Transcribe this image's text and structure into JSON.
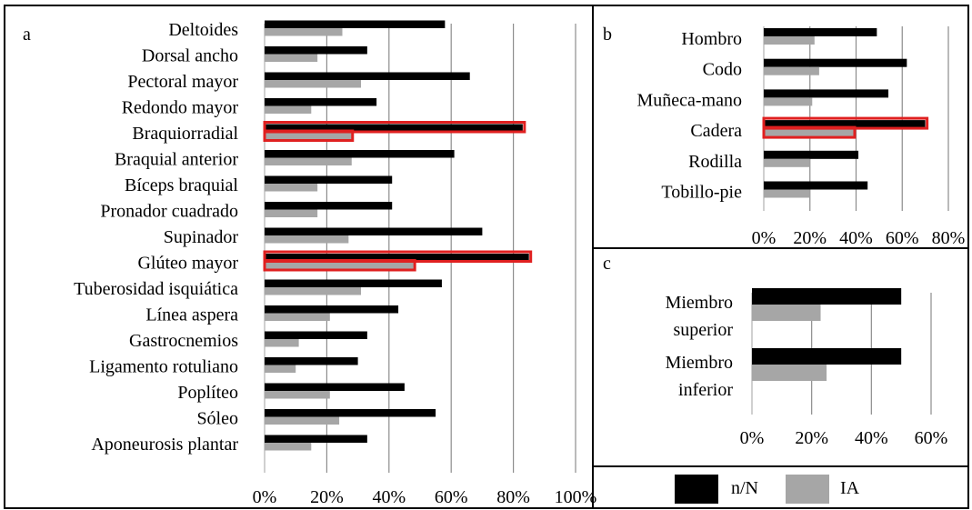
{
  "colors": {
    "nN": "#000000",
    "IA": "#a6a6a6",
    "highlight": "#e02020",
    "grid": "#8c8c8c",
    "border": "#000000"
  },
  "legend": {
    "series": [
      "n/N",
      "IA"
    ]
  },
  "chart_data": [
    {
      "type": "bar",
      "orientation": "horizontal",
      "panel": "a",
      "categories": [
        "Deltoides",
        "Dorsal ancho",
        "Pectoral mayor",
        "Redondo mayor",
        "Braquiorradial",
        "Braquial anterior",
        "Bíceps braquial",
        "Pronador cuadrado",
        "Supinador",
        "Glúteo mayor",
        "Tuberosidad isquiática",
        "Línea aspera",
        "Gastrocnemios",
        "Ligamento rotuliano",
        "Poplíteo",
        "Sóleo",
        "Aponeurosis plantar"
      ],
      "series": [
        {
          "name": "n/N",
          "values": [
            0.58,
            0.33,
            0.66,
            0.36,
            0.83,
            0.61,
            0.41,
            0.41,
            0.7,
            0.85,
            0.57,
            0.43,
            0.33,
            0.3,
            0.45,
            0.55,
            0.33
          ]
        },
        {
          "name": "IA",
          "values": [
            0.25,
            0.17,
            0.31,
            0.15,
            0.28,
            0.28,
            0.17,
            0.17,
            0.27,
            0.48,
            0.31,
            0.21,
            0.11,
            0.1,
            0.21,
            0.24,
            0.15
          ]
        }
      ],
      "highlighted": [
        "Braquiorradial",
        "Glúteo mayor"
      ],
      "xlim": [
        0,
        1.0
      ],
      "xticks": [
        "0%",
        "20%",
        "40%",
        "60%",
        "80%",
        "100%"
      ],
      "grid": true
    },
    {
      "type": "bar",
      "orientation": "horizontal",
      "panel": "b",
      "categories": [
        "Hombro",
        "Codo",
        "Muñeca-mano",
        "Cadera",
        "Rodilla",
        "Tobillo-pie"
      ],
      "series": [
        {
          "name": "n/N",
          "values": [
            0.49,
            0.62,
            0.54,
            0.7,
            0.41,
            0.45
          ]
        },
        {
          "name": "IA",
          "values": [
            0.22,
            0.24,
            0.21,
            0.39,
            0.2,
            0.2
          ]
        }
      ],
      "highlighted": [
        "Cadera"
      ],
      "xlim": [
        0,
        0.8
      ],
      "xticks": [
        "0%",
        "20%",
        "40%",
        "60%",
        "80%"
      ],
      "grid": true
    },
    {
      "type": "bar",
      "orientation": "horizontal",
      "panel": "c",
      "categories": [
        [
          "Miembro",
          "superior"
        ],
        [
          "Miembro",
          "inferior"
        ]
      ],
      "series": [
        {
          "name": "n/N",
          "values": [
            0.5,
            0.5
          ]
        },
        {
          "name": "IA",
          "values": [
            0.23,
            0.25
          ]
        }
      ],
      "highlighted": [],
      "xlim": [
        0,
        0.6
      ],
      "xticks": [
        "0%",
        "20%",
        "40%",
        "60%"
      ],
      "grid": true
    }
  ]
}
